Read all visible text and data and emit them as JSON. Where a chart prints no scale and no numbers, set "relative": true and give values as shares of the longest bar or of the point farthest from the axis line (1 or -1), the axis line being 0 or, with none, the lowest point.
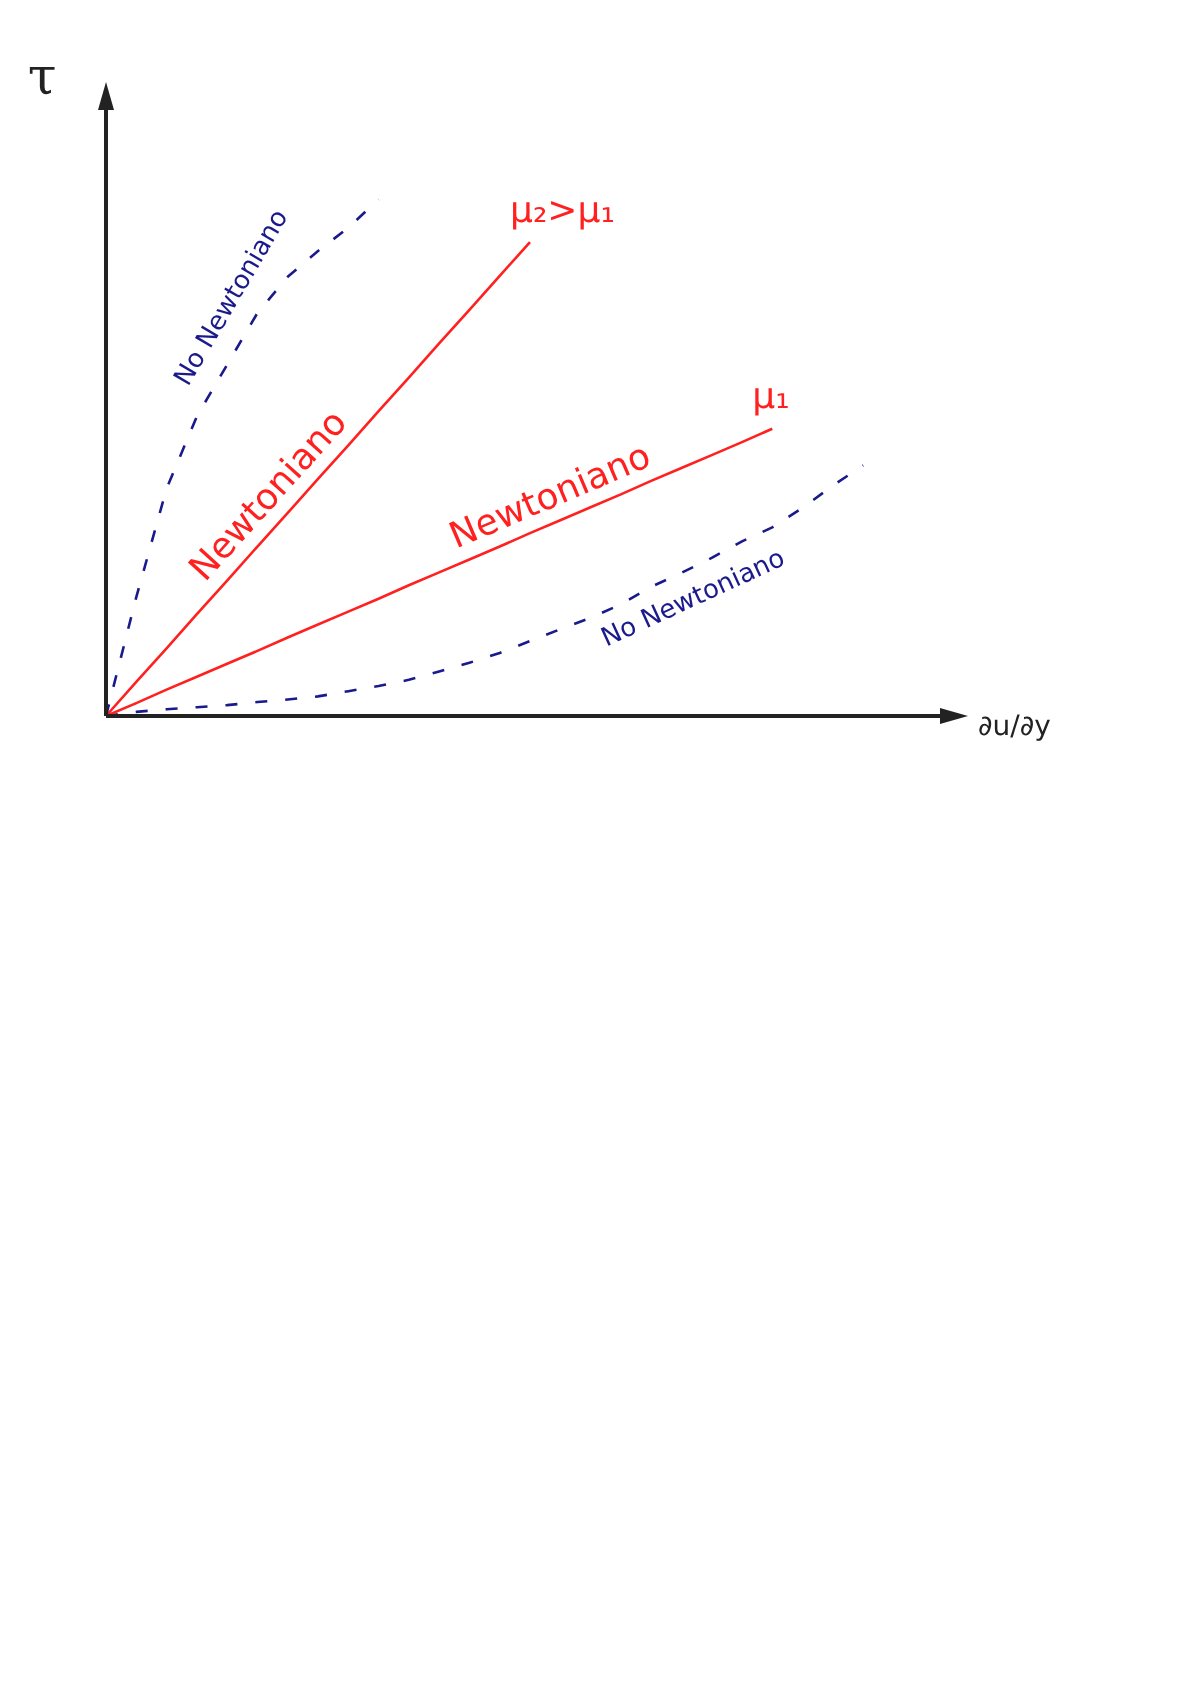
{
  "chart_data": {
    "type": "line",
    "relative": true,
    "xlabel": "∂u/∂y",
    "ylabel": "τ",
    "legend": false,
    "marker": "none",
    "categories": [
      null,
      null,
      null,
      null,
      null,
      null,
      null,
      null,
      null,
      null,
      null,
      null,
      null,
      null,
      null,
      null,
      null,
      null,
      null,
      null,
      null,
      null,
      null,
      null,
      null,
      null,
      null,
      null,
      null
    ],
    "series": [
      {
        "name": "No Newtoniano",
        "color": "#1a1a8c",
        "line_style": "dashed",
        "values": [
          0,
          0.23,
          0.44,
          0.58,
          0.68,
          0.78,
          0.85,
          0.9,
          0.945,
          1.0,
          null,
          null,
          null,
          null,
          null,
          null,
          null,
          null,
          null,
          null,
          null,
          null,
          null,
          null,
          null,
          null,
          null,
          null,
          null
        ]
      },
      {
        "name": "Newtoniano",
        "color": "#ff2020",
        "line_style": "solid",
        "values": [
          0,
          0.066,
          0.131,
          0.197,
          0.262,
          0.328,
          0.393,
          0.459,
          0.524,
          0.59,
          0.655,
          0.721,
          0.786,
          0.852,
          0.917,
          null,
          null,
          null,
          null,
          null,
          null,
          null,
          null,
          null,
          null,
          null,
          null,
          null,
          null
        ]
      },
      {
        "name": "Newtoniano",
        "color": "#ff2020",
        "line_style": "solid",
        "values": [
          0,
          0.025,
          0.051,
          0.076,
          0.101,
          0.126,
          0.152,
          0.177,
          0.202,
          0.227,
          0.253,
          0.278,
          0.303,
          0.328,
          0.354,
          0.379,
          0.404,
          0.429,
          0.455,
          0.48,
          0.505,
          0.53,
          0.556,
          null,
          null,
          null,
          null,
          null,
          null
        ]
      },
      {
        "name": "No Newtoniano",
        "color": "#1a1a8c",
        "line_style": "dashed",
        "values": [
          0,
          0.008,
          0.013,
          0.017,
          0.021,
          0.027,
          0.032,
          0.038,
          0.048,
          0.058,
          0.07,
          0.086,
          0.103,
          0.122,
          0.145,
          0.168,
          0.19,
          0.216,
          0.25,
          0.277,
          0.306,
          0.338,
          0.365,
          0.403,
          0.446,
          0.485,
          null,
          null,
          null
        ]
      }
    ],
    "annotations": [
      "μ₂>μ₁",
      "μ₁"
    ]
  }
}
